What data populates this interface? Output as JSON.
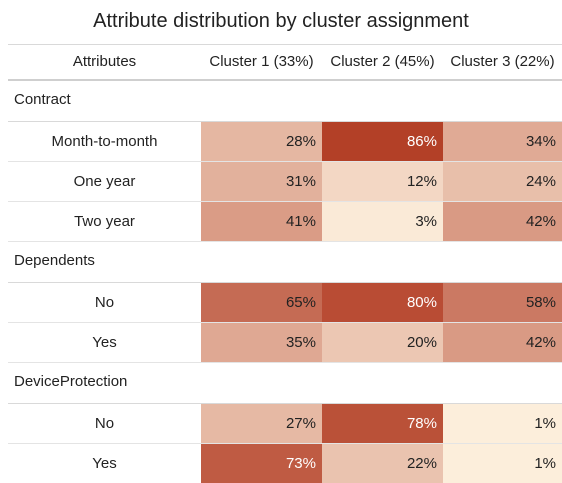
{
  "chart_data": {
    "type": "table",
    "title": "Attribute distribution by cluster assignment",
    "row_header": "Attributes",
    "columns": [
      "Cluster 1 (33%)",
      "Cluster 2 (45%)",
      "Cluster 3 (22%)"
    ],
    "groups": [
      {
        "name": "Contract",
        "rows": [
          {
            "label": "Month-to-month",
            "values": [
              "28%",
              "86%",
              "34%"
            ]
          },
          {
            "label": "One year",
            "values": [
              "31%",
              "12%",
              "24%"
            ]
          },
          {
            "label": "Two year",
            "values": [
              "41%",
              "3%",
              "42%"
            ]
          }
        ]
      },
      {
        "name": "Dependents",
        "rows": [
          {
            "label": "No",
            "values": [
              "65%",
              "80%",
              "58%"
            ]
          },
          {
            "label": "Yes",
            "values": [
              "35%",
              "20%",
              "42%"
            ]
          }
        ]
      },
      {
        "name": "DeviceProtection",
        "rows": [
          {
            "label": "No",
            "values": [
              "27%",
              "78%",
              "1%"
            ]
          },
          {
            "label": "Yes",
            "values": [
              "73%",
              "22%",
              "1%"
            ]
          }
        ]
      }
    ],
    "color_scale": {
      "low": "#fdf0dd",
      "high": "#b0381f",
      "text_dark": "#222222",
      "text_light": "#ffffff"
    }
  }
}
